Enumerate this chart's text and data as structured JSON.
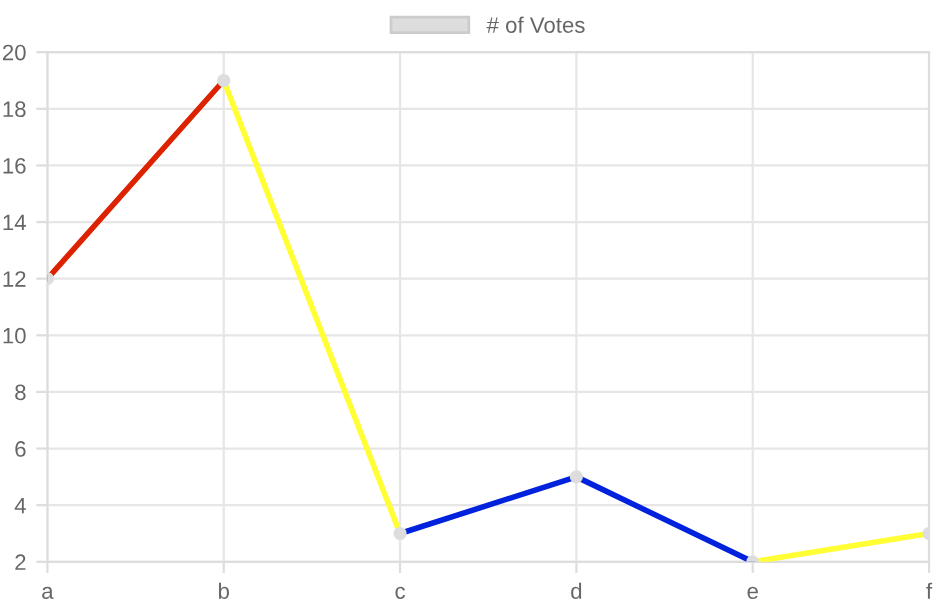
{
  "chart_data": {
    "type": "line",
    "categories": [
      "a",
      "b",
      "c",
      "d",
      "e",
      "f"
    ],
    "series": [
      {
        "name": "# of Votes",
        "type": "scatter",
        "marker": "circle",
        "color": "#dddddd",
        "values": [
          12,
          19,
          3,
          5,
          2,
          3
        ]
      },
      {
        "color": "#dd2200",
        "values": [
          12,
          19,
          null,
          null,
          null,
          null
        ]
      },
      {
        "color": "#ffff33",
        "values": [
          null,
          19,
          3,
          null,
          2,
          3
        ]
      },
      {
        "color": "#0022dd",
        "values": [
          null,
          null,
          3,
          5,
          2,
          null
        ]
      }
    ],
    "ylim": [
      2,
      20
    ],
    "yticks": [
      2,
      4,
      6,
      8,
      10,
      12,
      14,
      16,
      18,
      20
    ],
    "grid": true,
    "legend": "top"
  }
}
